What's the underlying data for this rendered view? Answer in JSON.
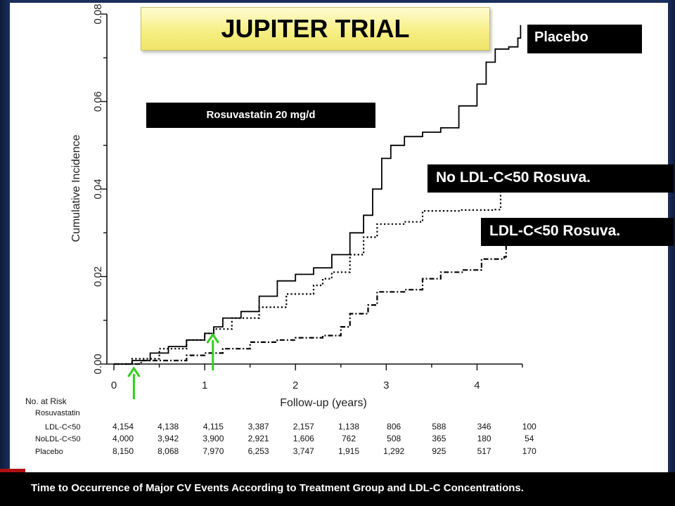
{
  "title": "JUPITER TRIAL",
  "labels": {
    "placebo": "Placebo",
    "rosuvastatin": "Rosuvastatin 20 mg/d",
    "no_ldl": "No LDL-C<50 Rosuva.",
    "ldl": "LDL-C<50 Rosuva."
  },
  "caption": "Time to Occurrence of Major CV Events According to Treatment Group and LDL-C Concentrations.",
  "colors": {
    "curve": "#000000",
    "arrow": "#33cc22",
    "title_bg": "#f5ee80"
  },
  "risk_table": {
    "header": "No. at Risk",
    "subheader": "Rosuvastatin",
    "rows": [
      {
        "label": "LDL-C<50",
        "values": [
          "4,154",
          "4,138",
          "4,115",
          "3,387",
          "2,157",
          "1,138",
          "806",
          "588",
          "346",
          "100"
        ]
      },
      {
        "label": "NoLDL-C<50",
        "values": [
          "4,000",
          "3,942",
          "3,900",
          "2,921",
          "1,606",
          "762",
          "508",
          "365",
          "180",
          "54"
        ]
      },
      {
        "label": "Placebo",
        "values": [
          "8,150",
          "8,068",
          "7,970",
          "6,253",
          "3,747",
          "1,915",
          "1,292",
          "925",
          "517",
          "170"
        ]
      }
    ]
  },
  "chart_data": {
    "type": "line",
    "xlabel": "Follow-up (years)",
    "ylabel": "Cumulative Incidence",
    "xlim": [
      0,
      4.5
    ],
    "ylim": [
      0,
      0.08
    ],
    "xticks": [
      "0",
      "1",
      "2",
      "3",
      "4"
    ],
    "yticks": [
      "0.00",
      "0.02",
      "0.04",
      "0.06",
      "0.08"
    ],
    "arrows_at_x": [
      0.22,
      1.09
    ],
    "series": [
      {
        "name": "Placebo",
        "style": "solid",
        "points": [
          [
            0,
            0
          ],
          [
            0.2,
            0.0008
          ],
          [
            0.4,
            0.0025
          ],
          [
            0.6,
            0.004
          ],
          [
            0.8,
            0.0055
          ],
          [
            1.0,
            0.007
          ],
          [
            1.1,
            0.0085
          ],
          [
            1.2,
            0.0105
          ],
          [
            1.4,
            0.012
          ],
          [
            1.6,
            0.0155
          ],
          [
            1.8,
            0.019
          ],
          [
            2.0,
            0.0205
          ],
          [
            2.2,
            0.022
          ],
          [
            2.4,
            0.025
          ],
          [
            2.6,
            0.03
          ],
          [
            2.75,
            0.034
          ],
          [
            2.85,
            0.04
          ],
          [
            2.95,
            0.047
          ],
          [
            3.05,
            0.05
          ],
          [
            3.2,
            0.052
          ],
          [
            3.4,
            0.053
          ],
          [
            3.6,
            0.054
          ],
          [
            3.8,
            0.059
          ],
          [
            4.0,
            0.064
          ],
          [
            4.1,
            0.069
          ],
          [
            4.2,
            0.072
          ],
          [
            4.35,
            0.0725
          ],
          [
            4.45,
            0.0745
          ],
          [
            4.48,
            0.0775
          ]
        ]
      },
      {
        "name": "No LDL-C<50 Rosuva.",
        "style": "dotted",
        "points": [
          [
            0,
            0
          ],
          [
            0.2,
            0.0012
          ],
          [
            0.5,
            0.0035
          ],
          [
            0.8,
            0.0055
          ],
          [
            1.0,
            0.007
          ],
          [
            1.1,
            0.008
          ],
          [
            1.3,
            0.0105
          ],
          [
            1.6,
            0.013
          ],
          [
            1.9,
            0.016
          ],
          [
            2.2,
            0.018
          ],
          [
            2.3,
            0.0195
          ],
          [
            2.4,
            0.021
          ],
          [
            2.6,
            0.025
          ],
          [
            2.75,
            0.029
          ],
          [
            2.9,
            0.032
          ],
          [
            3.2,
            0.0325
          ],
          [
            3.4,
            0.035
          ],
          [
            3.8,
            0.0352
          ],
          [
            4.2,
            0.0353
          ],
          [
            4.26,
            0.04
          ]
        ]
      },
      {
        "name": "LDL-C<50 Rosuva.",
        "style": "dashdot",
        "points": [
          [
            0,
            0
          ],
          [
            0.3,
            0.0008
          ],
          [
            0.8,
            0.002
          ],
          [
            1.0,
            0.0025
          ],
          [
            1.2,
            0.0035
          ],
          [
            1.5,
            0.005
          ],
          [
            1.8,
            0.0055
          ],
          [
            2.0,
            0.006
          ],
          [
            2.3,
            0.0065
          ],
          [
            2.5,
            0.0085
          ],
          [
            2.6,
            0.0115
          ],
          [
            2.8,
            0.0135
          ],
          [
            2.9,
            0.0165
          ],
          [
            3.2,
            0.017
          ],
          [
            3.4,
            0.0195
          ],
          [
            3.6,
            0.021
          ],
          [
            3.85,
            0.0215
          ],
          [
            4.05,
            0.024
          ],
          [
            4.3,
            0.0245
          ],
          [
            4.32,
            0.03
          ]
        ]
      }
    ]
  }
}
